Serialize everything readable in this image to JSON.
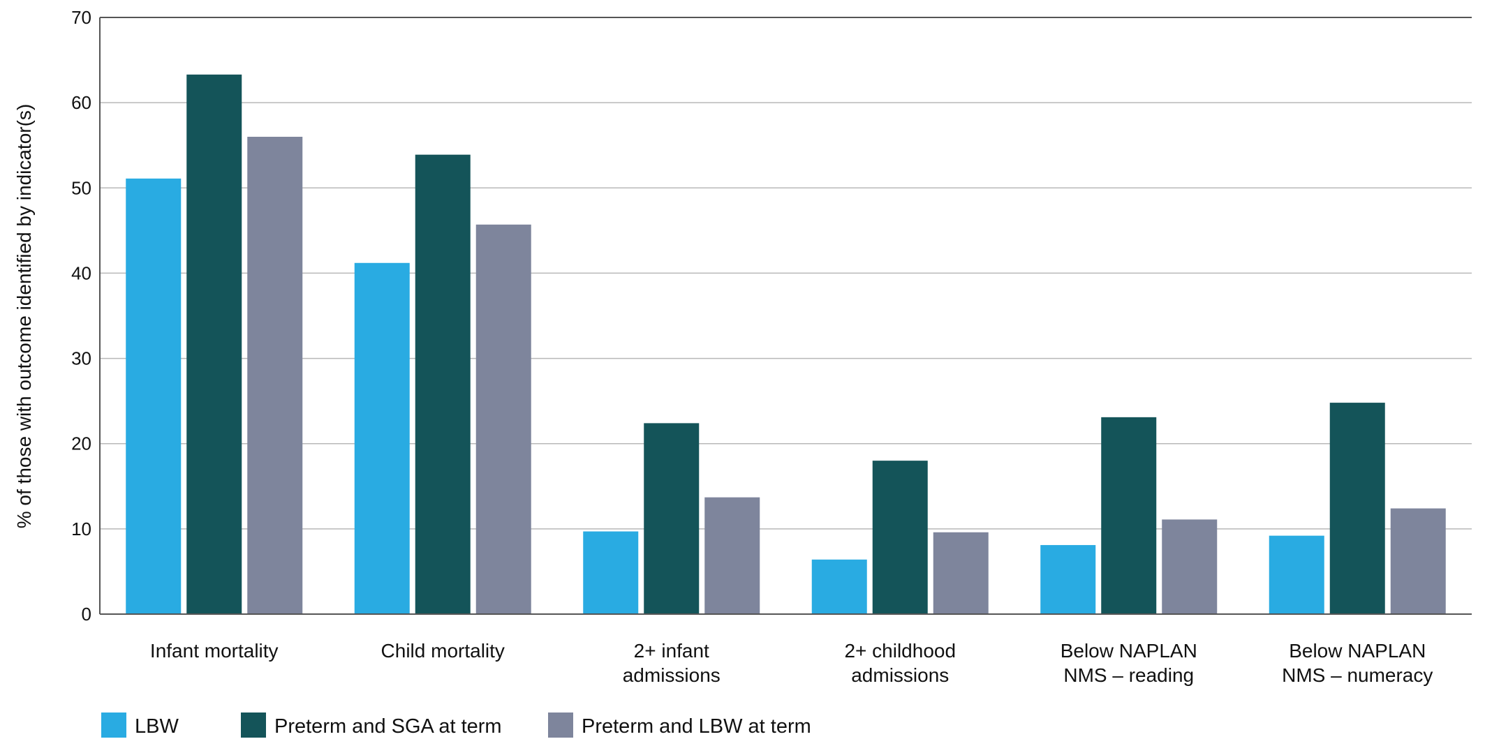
{
  "chart_data": {
    "type": "bar",
    "title": "",
    "xlabel": "",
    "ylabel": "% of those with outcome identified by indicator(s)",
    "ylim": [
      0,
      70
    ],
    "yticks": [
      0,
      10,
      20,
      30,
      40,
      50,
      60,
      70
    ],
    "grid": true,
    "legend_position": "bottom-left",
    "categories": [
      [
        "Infant mortality"
      ],
      [
        "Child mortality"
      ],
      [
        "2+ infant",
        "admissions"
      ],
      [
        "2+ childhood",
        "admissions"
      ],
      [
        "Below NAPLAN",
        "NMS – reading"
      ],
      [
        "Below NAPLAN",
        "NMS – numeracy"
      ]
    ],
    "series": [
      {
        "name": "LBW",
        "color": "#29abe2",
        "values": [
          51.1,
          41.2,
          9.7,
          6.4,
          8.1,
          9.2
        ]
      },
      {
        "name": "Preterm and SGA at term",
        "color": "#145459",
        "values": [
          63.3,
          53.9,
          22.4,
          18.0,
          23.1,
          24.8
        ]
      },
      {
        "name": "Preterm and LBW at term",
        "color": "#7e859c",
        "values": [
          56.0,
          45.7,
          13.7,
          9.6,
          11.1,
          12.4
        ]
      }
    ]
  }
}
